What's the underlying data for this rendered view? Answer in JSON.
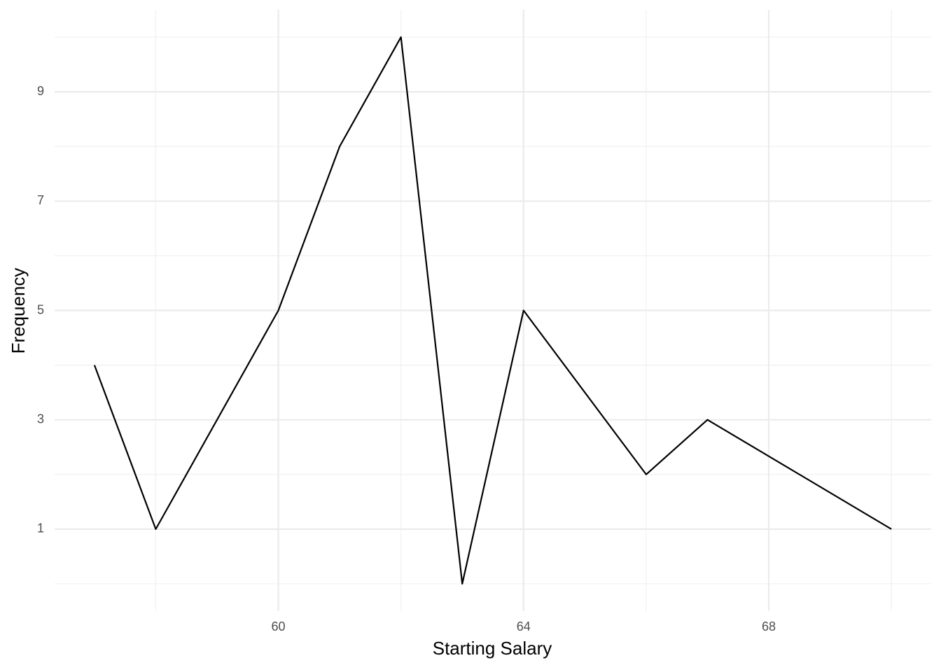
{
  "chart_data": {
    "type": "line",
    "x_label": "Starting Salary",
    "y_label": "Frequency",
    "x": [
      57,
      58,
      60,
      61,
      62,
      63,
      64,
      66,
      67,
      70
    ],
    "values": [
      4,
      1,
      5,
      8,
      10,
      0,
      5,
      2,
      3,
      1
    ],
    "color": "#000000",
    "xlim": [
      56.35,
      70.65
    ],
    "ylim": [
      -0.5,
      10.5
    ],
    "xticks": [
      60,
      64,
      68
    ],
    "yticks": [
      1,
      3,
      5,
      7,
      9
    ],
    "xminor": [
      58,
      62,
      66,
      70
    ],
    "yminor": [
      0,
      2,
      4,
      6,
      8,
      10
    ],
    "grid": true
  }
}
